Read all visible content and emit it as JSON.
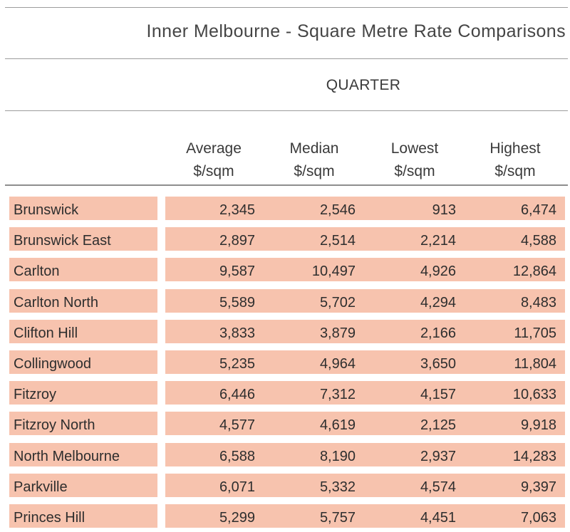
{
  "title": "Inner Melbourne - Square Metre Rate Comparisons",
  "period_label": "QUARTER",
  "columns": [
    {
      "line1": "Average",
      "line2": "$/sqm"
    },
    {
      "line1": "Median",
      "line2": "$/sqm"
    },
    {
      "line1": "Lowest",
      "line2": "$/sqm"
    },
    {
      "line1": "Highest",
      "line2": "$/sqm"
    }
  ],
  "row_color": "#f7c3ae",
  "rows": [
    {
      "suburb": "Brunswick",
      "values": [
        "2,345",
        "2,546",
        "913",
        "6,474"
      ]
    },
    {
      "suburb": "Brunswick East",
      "values": [
        "2,897",
        "2,514",
        "2,214",
        "4,588"
      ]
    },
    {
      "suburb": "Carlton",
      "values": [
        "9,587",
        "10,497",
        "4,926",
        "12,864"
      ]
    },
    {
      "suburb": "Carlton North",
      "values": [
        "5,589",
        "5,702",
        "4,294",
        "8,483"
      ]
    },
    {
      "suburb": "Clifton Hill",
      "values": [
        "3,833",
        "3,879",
        "2,166",
        "11,705"
      ]
    },
    {
      "suburb": "Collingwood",
      "values": [
        "5,235",
        "4,964",
        "3,650",
        "11,804"
      ]
    },
    {
      "suburb": "Fitzroy",
      "values": [
        "6,446",
        "7,312",
        "4,157",
        "10,633"
      ]
    },
    {
      "suburb": "Fitzroy North",
      "values": [
        "4,577",
        "4,619",
        "2,125",
        "9,918"
      ]
    },
    {
      "suburb": "North Melbourne",
      "values": [
        "6,588",
        "8,190",
        "2,937",
        "14,283"
      ]
    },
    {
      "suburb": "Parkville",
      "values": [
        "6,071",
        "5,332",
        "4,574",
        "9,397"
      ]
    },
    {
      "suburb": "Princes Hill",
      "values": [
        "5,299",
        "5,757",
        "4,451",
        "7,063"
      ]
    }
  ]
}
